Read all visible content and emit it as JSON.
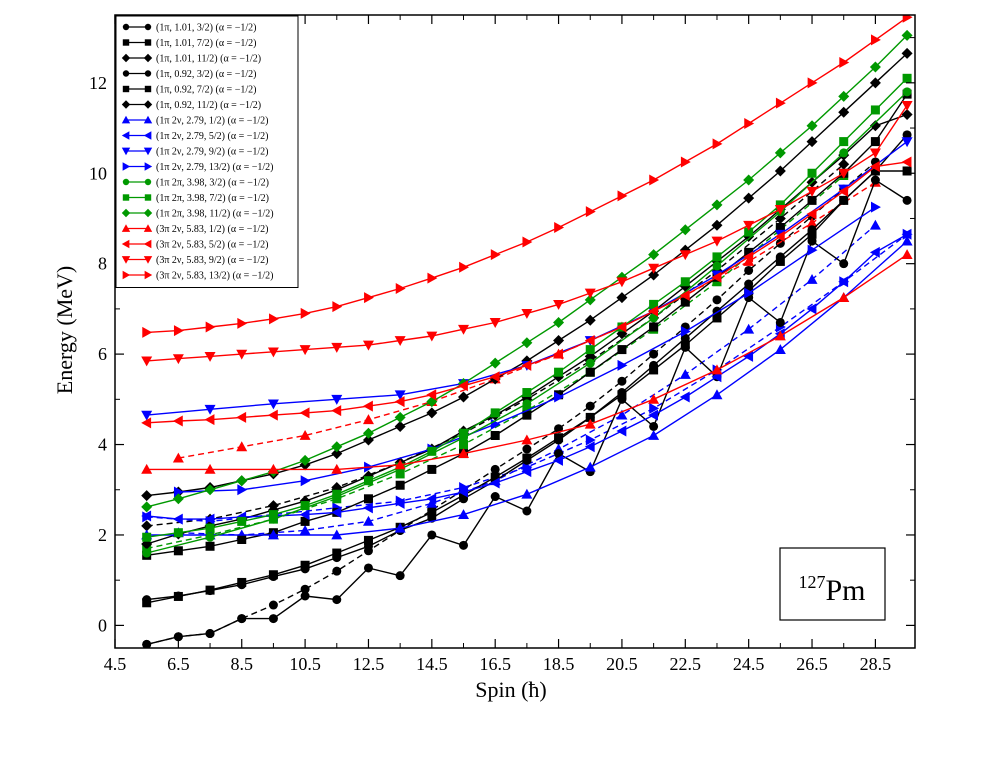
{
  "chart_data": {
    "type": "line",
    "title": "",
    "xlabel": "Spin (ħ)",
    "ylabel": "Energy (MeV)",
    "xlim": [
      4.5,
      29.75
    ],
    "ylim": [
      -0.5,
      13.5
    ],
    "xticks": [
      4.5,
      6.5,
      8.5,
      10.5,
      12.5,
      14.5,
      16.5,
      18.5,
      20.5,
      22.5,
      24.5,
      26.5,
      28.5
    ],
    "xtick_labels": [
      "4.5",
      "6.5",
      "8.5",
      "10.5",
      "12.5",
      "14.5",
      "16.5",
      "18.5",
      "20.5",
      "22.5",
      "24.5",
      "26.5",
      "28.5"
    ],
    "yticks": [
      0,
      2,
      4,
      6,
      8,
      10,
      12
    ],
    "ytick_labels": [
      "0",
      "2",
      "4",
      "6",
      "8",
      "10",
      "12"
    ],
    "grid": false,
    "legend_position": "top-left",
    "annotation": {
      "mass_number": "127",
      "element": "Pm"
    },
    "series": [
      {
        "name": "(1π, 1.01, 3/2) (α = −1/2)",
        "color": "#000000",
        "marker": "circle",
        "dashed": false,
        "x": [
          5.5,
          6.5,
          7.5,
          8.5,
          9.5,
          10.5,
          11.5,
          12.5,
          13.5,
          14.5,
          15.5,
          16.5,
          17.5,
          18.5,
          19.5,
          20.5,
          21.5,
          22.5,
          23.5,
          24.5,
          25.5,
          26.5,
          27.5,
          28.5,
          29.5
        ],
        "y": [
          0.57,
          0.65,
          0.77,
          0.9,
          1.08,
          1.25,
          1.5,
          1.75,
          2.1,
          2.37,
          2.8,
          3.2,
          3.65,
          4.1,
          4.6,
          5.15,
          5.75,
          6.35,
          6.95,
          7.55,
          8.15,
          8.75,
          9.4,
          10.05,
          10.85
        ]
      },
      {
        "name": "(1π, 1.01, 7/2) (α = −1/2)",
        "color": "#000000",
        "marker": "square",
        "dashed": false,
        "x": [
          5.5,
          6.5,
          7.5,
          8.5,
          9.5,
          10.5,
          11.5,
          12.5,
          13.5,
          14.5,
          15.5,
          16.5,
          17.5,
          18.5,
          19.5,
          20.5,
          21.5,
          22.5,
          23.5,
          24.5,
          25.5,
          26.5,
          27.5,
          28.5,
          29.5
        ],
        "y": [
          1.55,
          1.65,
          1.75,
          1.9,
          2.05,
          2.3,
          2.5,
          2.8,
          3.1,
          3.45,
          3.8,
          4.2,
          4.65,
          5.1,
          5.6,
          6.1,
          6.6,
          7.15,
          7.7,
          8.25,
          8.8,
          9.4,
          10.0,
          10.7,
          11.75
        ]
      },
      {
        "name": "(1π, 1.01, 11/2) (α = −1/2)",
        "color": "#000000",
        "marker": "diamond",
        "dashed": false,
        "x": [
          5.5,
          6.5,
          7.5,
          8.5,
          9.5,
          10.5,
          11.5,
          12.5,
          13.5,
          14.5,
          15.5,
          16.5,
          17.5,
          18.5,
          19.5,
          20.5,
          21.5,
          22.5,
          23.5,
          24.5,
          25.5,
          26.5,
          27.5,
          28.5,
          29.5
        ],
        "y": [
          2.87,
          2.95,
          3.05,
          3.2,
          3.35,
          3.55,
          3.8,
          4.1,
          4.4,
          4.7,
          5.05,
          5.45,
          5.85,
          6.3,
          6.75,
          7.25,
          7.75,
          8.3,
          8.85,
          9.45,
          10.05,
          10.7,
          11.35,
          12.0,
          12.65
        ]
      },
      {
        "name": "(1π, 0.92, 3/2) (α = −1/2)",
        "color": "#000000",
        "marker": "circle",
        "dashed": false,
        "x": [
          5.5,
          6.5,
          7.5,
          8.5,
          9.5,
          10.5,
          11.5,
          12.5,
          13.5,
          14.5,
          15.5,
          16.5,
          17.5,
          18.5,
          19.5,
          20.5,
          21.5,
          22.5,
          23.5,
          24.5,
          25.5,
          26.5,
          27.5,
          28.5,
          29.5
        ],
        "y": [
          -0.42,
          -0.25,
          -0.18,
          0.15,
          0.15,
          0.65,
          0.57,
          1.27,
          1.1,
          2.0,
          1.77,
          2.85,
          2.53,
          3.8,
          3.4,
          5.0,
          4.4,
          6.15,
          5.5,
          7.25,
          6.7,
          8.5,
          8.0,
          9.85,
          9.4
        ]
      },
      {
        "name": "(1π, 0.92, 7/2) (α = −1/2)",
        "color": "#000000",
        "marker": "square",
        "dashed": false,
        "x": [
          5.5,
          6.5,
          7.5,
          8.5,
          9.5,
          10.5,
          11.5,
          12.5,
          13.5,
          14.5,
          15.5,
          16.5,
          17.5,
          18.5,
          19.5,
          20.5,
          21.5,
          22.5,
          23.5,
          24.5,
          25.5,
          26.5,
          27.5,
          28.5,
          29.5
        ],
        "y": [
          0.5,
          0.64,
          0.78,
          0.95,
          1.12,
          1.33,
          1.6,
          1.88,
          2.17,
          2.5,
          2.88,
          3.28,
          3.7,
          4.15,
          4.6,
          5.1,
          5.65,
          6.2,
          6.8,
          7.4,
          8.05,
          8.65,
          9.4,
          10.05,
          10.05
        ]
      },
      {
        "name": "(1π, 0.92, 11/2) (α = −1/2)",
        "color": "#000000",
        "marker": "diamond",
        "dashed": false,
        "x": [
          5.5,
          6.5,
          7.5,
          8.5,
          9.5,
          10.5,
          11.5,
          12.5,
          13.5,
          14.5,
          15.5,
          16.5,
          17.5,
          18.5,
          19.5,
          20.5,
          21.5,
          22.5,
          23.5,
          24.5,
          25.5,
          26.5,
          27.5,
          28.5,
          29.5
        ],
        "y": [
          1.8,
          2.02,
          2.2,
          2.35,
          2.55,
          2.75,
          3.0,
          3.3,
          3.6,
          3.9,
          4.3,
          4.65,
          5.05,
          5.5,
          5.95,
          6.45,
          6.95,
          7.5,
          8.05,
          8.6,
          9.2,
          9.8,
          10.4,
          11.05,
          11.3
        ]
      },
      {
        "name": "(1π 2ν, 2.79, 1/2) (α = −1/2)",
        "color": "#0000ff",
        "marker": "triangle-up",
        "dashed": false,
        "x": [
          5.5,
          7.5,
          9.5,
          11.5,
          13.5,
          15.5,
          17.5,
          19.5,
          21.5,
          23.5,
          25.5,
          27.5,
          29.5
        ],
        "y": [
          2.0,
          2.0,
          2.0,
          2.0,
          2.15,
          2.45,
          2.9,
          3.5,
          4.2,
          5.1,
          6.1,
          7.25,
          8.5
        ]
      },
      {
        "name": "(1π 2ν, 2.79, 5/2) (α = −1/2)",
        "color": "#0000ff",
        "marker": "triangle-left",
        "dashed": false,
        "x": [
          5.5,
          6.5,
          7.5,
          8.5,
          9.5,
          10.5,
          11.5,
          12.5,
          13.5,
          14.5,
          15.5,
          16.5,
          17.5,
          18.5,
          19.5,
          20.5,
          21.5,
          22.5,
          23.5,
          24.5,
          25.5,
          26.5,
          27.5,
          28.5,
          29.5
        ],
        "y": [
          2.42,
          2.35,
          2.35,
          2.4,
          2.42,
          2.45,
          2.5,
          2.6,
          2.7,
          2.8,
          2.95,
          3.15,
          3.4,
          3.65,
          3.95,
          4.3,
          4.65,
          5.05,
          5.5,
          5.95,
          6.45,
          7.0,
          7.6,
          8.25,
          8.65
        ]
      },
      {
        "name": "(1π 2ν, 2.79, 9/2) (α = −1/2)",
        "color": "#0000ff",
        "marker": "triangle-down",
        "dashed": false,
        "x": [
          5.5,
          7.5,
          9.5,
          11.5,
          13.5,
          15.5,
          17.5,
          19.5,
          21.5,
          23.5,
          25.5,
          27.5,
          29.5
        ],
        "y": [
          4.65,
          4.78,
          4.9,
          5.0,
          5.1,
          5.35,
          5.75,
          6.3,
          6.95,
          7.75,
          8.65,
          9.65,
          10.7
        ]
      },
      {
        "name": "(1π 2ν, 2.79, 13/2) (α = −1/2)",
        "color": "#0000ff",
        "marker": "triangle-right",
        "dashed": false,
        "x": [
          6.5,
          8.5,
          10.5,
          12.5,
          14.5,
          16.5,
          18.5,
          20.5,
          22.5,
          24.5,
          26.5,
          28.5
        ],
        "y": [
          2.95,
          3.0,
          3.2,
          3.5,
          3.9,
          4.45,
          5.05,
          5.75,
          6.5,
          7.35,
          8.3,
          9.25
        ]
      },
      {
        "name": "(1π 2π, 3.98, 3/2) (α = −1/2)",
        "color": "#009900",
        "marker": "circle",
        "dashed": false,
        "x": [
          5.5,
          7.5,
          9.5,
          11.5,
          13.5,
          15.5,
          17.5,
          19.5,
          21.5,
          23.5,
          25.5,
          27.5,
          29.5
        ],
        "y": [
          1.6,
          1.95,
          2.35,
          2.85,
          3.45,
          4.15,
          4.9,
          5.8,
          6.8,
          7.95,
          9.15,
          10.45,
          11.8
        ]
      },
      {
        "name": "(1π 2π, 3.98, 7/2) (α = −1/2)",
        "color": "#009900",
        "marker": "square",
        "dashed": false,
        "x": [
          5.5,
          6.5,
          7.5,
          8.5,
          9.5,
          10.5,
          11.5,
          12.5,
          13.5,
          14.5,
          15.5,
          16.5,
          17.5,
          18.5,
          19.5,
          20.5,
          21.5,
          22.5,
          23.5,
          24.5,
          25.5,
          26.5,
          27.5,
          28.5,
          29.5
        ],
        "y": [
          1.95,
          2.05,
          2.15,
          2.3,
          2.45,
          2.65,
          2.9,
          3.2,
          3.5,
          3.85,
          4.25,
          4.7,
          5.15,
          5.6,
          6.1,
          6.6,
          7.1,
          7.6,
          8.15,
          8.7,
          9.3,
          10.0,
          10.7,
          11.4,
          12.1
        ]
      },
      {
        "name": "(1π 2π, 3.98, 11/2) (α = −1/2)",
        "color": "#009900",
        "marker": "diamond",
        "dashed": false,
        "x": [
          5.5,
          6.5,
          7.5,
          8.5,
          9.5,
          10.5,
          11.5,
          12.5,
          13.5,
          14.5,
          15.5,
          16.5,
          17.5,
          18.5,
          19.5,
          20.5,
          21.5,
          22.5,
          23.5,
          24.5,
          25.5,
          26.5,
          27.5,
          28.5,
          29.5
        ],
        "y": [
          2.62,
          2.8,
          3.0,
          3.2,
          3.4,
          3.65,
          3.95,
          4.25,
          4.6,
          4.95,
          5.35,
          5.8,
          6.25,
          6.7,
          7.2,
          7.7,
          8.2,
          8.75,
          9.3,
          9.85,
          10.45,
          11.05,
          11.7,
          12.35,
          13.05
        ]
      },
      {
        "name": "(3π 2ν, 5.83, 1/2) (α = −1/2)",
        "color": "#ff0000",
        "marker": "triangle-up",
        "dashed": false,
        "x": [
          5.5,
          7.5,
          9.5,
          11.5,
          13.5,
          15.5,
          17.5,
          19.5,
          21.5,
          23.5,
          25.5,
          27.5,
          29.5
        ],
        "y": [
          3.45,
          3.45,
          3.45,
          3.45,
          3.55,
          3.8,
          4.1,
          4.45,
          5.0,
          5.65,
          6.4,
          7.25,
          8.2
        ]
      },
      {
        "name": "(3π 2ν, 5.83, 5/2) (α = −1/2)",
        "color": "#ff0000",
        "marker": "triangle-left",
        "dashed": false,
        "x": [
          5.5,
          6.5,
          7.5,
          8.5,
          9.5,
          10.5,
          11.5,
          12.5,
          13.5,
          14.5,
          15.5,
          16.5,
          17.5,
          18.5,
          19.5,
          20.5,
          21.5,
          22.5,
          23.5,
          24.5,
          25.5,
          26.5,
          27.5,
          28.5,
          29.5
        ],
        "y": [
          4.48,
          4.52,
          4.55,
          4.6,
          4.65,
          4.7,
          4.75,
          4.85,
          4.95,
          5.1,
          5.3,
          5.5,
          5.75,
          6.0,
          6.3,
          6.6,
          6.95,
          7.3,
          7.7,
          8.15,
          8.6,
          9.1,
          9.6,
          10.15,
          10.25
        ]
      },
      {
        "name": "(3π 2ν, 5.83, 9/2) (α = −1/2)",
        "color": "#ff0000",
        "marker": "triangle-down",
        "dashed": false,
        "x": [
          5.5,
          6.5,
          7.5,
          8.5,
          9.5,
          10.5,
          11.5,
          12.5,
          13.5,
          14.5,
          15.5,
          16.5,
          17.5,
          18.5,
          19.5,
          20.5,
          21.5,
          22.5,
          23.5,
          24.5,
          25.5,
          26.5,
          27.5,
          28.5,
          29.5
        ],
        "y": [
          5.85,
          5.9,
          5.95,
          6.0,
          6.05,
          6.1,
          6.15,
          6.2,
          6.3,
          6.4,
          6.55,
          6.7,
          6.9,
          7.1,
          7.35,
          7.6,
          7.9,
          8.2,
          8.5,
          8.85,
          9.2,
          9.6,
          10.0,
          10.45,
          11.5
        ]
      },
      {
        "name": "(3π 2ν, 5.83, 13/2) (α = −1/2)",
        "color": "#ff0000",
        "marker": "triangle-right",
        "dashed": false,
        "x": [
          5.5,
          6.5,
          7.5,
          8.5,
          9.5,
          10.5,
          11.5,
          12.5,
          13.5,
          14.5,
          15.5,
          16.5,
          17.5,
          18.5,
          19.5,
          20.5,
          21.5,
          22.5,
          23.5,
          24.5,
          25.5,
          26.5,
          27.5,
          28.5,
          29.5
        ],
        "y": [
          6.48,
          6.52,
          6.6,
          6.68,
          6.78,
          6.9,
          7.05,
          7.25,
          7.45,
          7.68,
          7.92,
          8.2,
          8.48,
          8.8,
          9.15,
          9.5,
          9.85,
          10.25,
          10.65,
          11.1,
          11.55,
          12.0,
          12.45,
          12.95,
          13.45
        ]
      }
    ],
    "dashed_series": [
      {
        "color": "#000000",
        "marker": "circle",
        "x": [
          5.5,
          6.5,
          7.5,
          8.5,
          9.5,
          10.5,
          11.5,
          12.5,
          13.5,
          14.5,
          15.5,
          16.5,
          17.5,
          18.5,
          19.5,
          20.5,
          21.5,
          22.5,
          23.5,
          24.5,
          25.5,
          26.5,
          27.5,
          28.5
        ],
        "y": [
          -0.42,
          -0.25,
          -0.18,
          0.15,
          0.45,
          0.8,
          1.2,
          1.65,
          2.1,
          2.55,
          3.0,
          3.45,
          3.9,
          4.35,
          4.85,
          5.4,
          6.0,
          6.6,
          7.2,
          7.85,
          8.45,
          9.05,
          9.65,
          10.25
        ]
      },
      {
        "color": "#000000",
        "marker": "diamond",
        "x": [
          5.5,
          7.5,
          9.5,
          11.5,
          13.5,
          15.5,
          17.5,
          19.5,
          21.5,
          23.5,
          25.5,
          27.5
        ],
        "y": [
          2.2,
          2.35,
          2.65,
          3.05,
          3.6,
          4.25,
          5.0,
          5.85,
          6.8,
          7.85,
          9.0,
          10.2
        ]
      },
      {
        "color": "#0000ff",
        "marker": "triangle-up",
        "x": [
          6.5,
          8.5,
          10.5,
          12.5,
          14.5,
          16.5,
          18.5,
          20.5,
          22.5,
          24.5,
          26.5,
          28.5
        ],
        "y": [
          2.05,
          2.0,
          2.1,
          2.3,
          2.7,
          3.2,
          3.9,
          4.65,
          5.55,
          6.55,
          7.65,
          8.85
        ]
      },
      {
        "color": "#0000ff",
        "marker": "triangle-right",
        "x": [
          5.5,
          7.5,
          9.5,
          11.5,
          13.5,
          15.5,
          17.5,
          19.5,
          21.5,
          23.5,
          25.5,
          27.5,
          29.5
        ],
        "y": [
          2.4,
          2.3,
          2.45,
          2.6,
          2.75,
          3.05,
          3.5,
          4.1,
          4.8,
          5.65,
          6.6,
          7.6,
          8.65
        ]
      },
      {
        "color": "#ff0000",
        "marker": "triangle-up",
        "x": [
          6.5,
          8.5,
          10.5,
          12.5,
          14.5,
          16.5,
          18.5,
          20.5,
          22.5,
          24.5,
          26.5,
          28.5
        ],
        "y": [
          3.7,
          3.95,
          4.2,
          4.55,
          4.95,
          5.45,
          6.0,
          6.6,
          7.3,
          8.05,
          8.9,
          9.8
        ]
      },
      {
        "color": "#009900",
        "marker": "square",
        "x": [
          5.5,
          7.5,
          9.5,
          11.5,
          13.5,
          15.5,
          17.5,
          19.5,
          21.5,
          23.5,
          25.5,
          27.5
        ],
        "y": [
          1.7,
          2.0,
          2.35,
          2.8,
          3.35,
          4.0,
          4.75,
          5.6,
          6.55,
          7.6,
          8.75,
          9.95
        ]
      }
    ]
  }
}
